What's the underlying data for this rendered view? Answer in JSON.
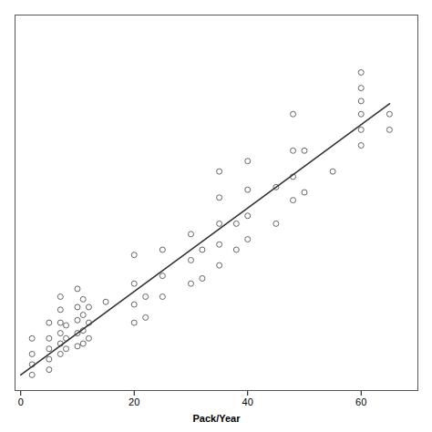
{
  "chart_data": {
    "type": "scatter",
    "xlabel": "Pack/Year",
    "xlim": [
      -1,
      70
    ],
    "ylim": [
      -20,
      700
    ],
    "xticks": [
      0,
      20,
      40,
      60
    ],
    "tick_labels": "x",
    "grid": false,
    "series": [
      {
        "type": "scatter",
        "marker": "circle",
        "color": "#666666",
        "x": [
          2,
          2,
          2,
          2,
          5,
          5,
          5,
          5,
          5,
          7,
          7,
          7,
          7,
          7,
          7,
          8,
          8,
          8,
          10,
          10,
          10,
          10,
          10,
          11,
          11,
          11,
          11,
          12,
          12,
          12,
          15,
          20,
          20,
          20,
          20,
          22,
          22,
          25,
          25,
          25,
          30,
          30,
          30,
          32,
          32,
          35,
          35,
          35,
          35,
          35,
          38,
          38,
          40,
          40,
          40,
          40,
          45,
          45,
          48,
          48,
          48,
          48,
          50,
          50,
          55,
          60,
          60,
          60,
          60,
          60,
          60,
          65,
          65
        ],
        "values": [
          10,
          30,
          50,
          80,
          20,
          40,
          60,
          80,
          110,
          50,
          70,
          90,
          110,
          135,
          160,
          60,
          80,
          105,
          65,
          90,
          115,
          140,
          175,
          70,
          95,
          125,
          155,
          80,
          110,
          140,
          150,
          110,
          145,
          185,
          240,
          120,
          160,
          160,
          200,
          250,
          185,
          230,
          280,
          195,
          250,
          220,
          260,
          300,
          350,
          400,
          250,
          300,
          270,
          315,
          365,
          420,
          300,
          370,
          345,
          390,
          440,
          510,
          360,
          440,
          400,
          450,
          480,
          510,
          535,
          560,
          590,
          480,
          510
        ]
      },
      {
        "type": "line",
        "line_style": "solid",
        "color": "#333333",
        "x": [
          0,
          65
        ],
        "values": [
          10,
          530
        ]
      }
    ]
  }
}
